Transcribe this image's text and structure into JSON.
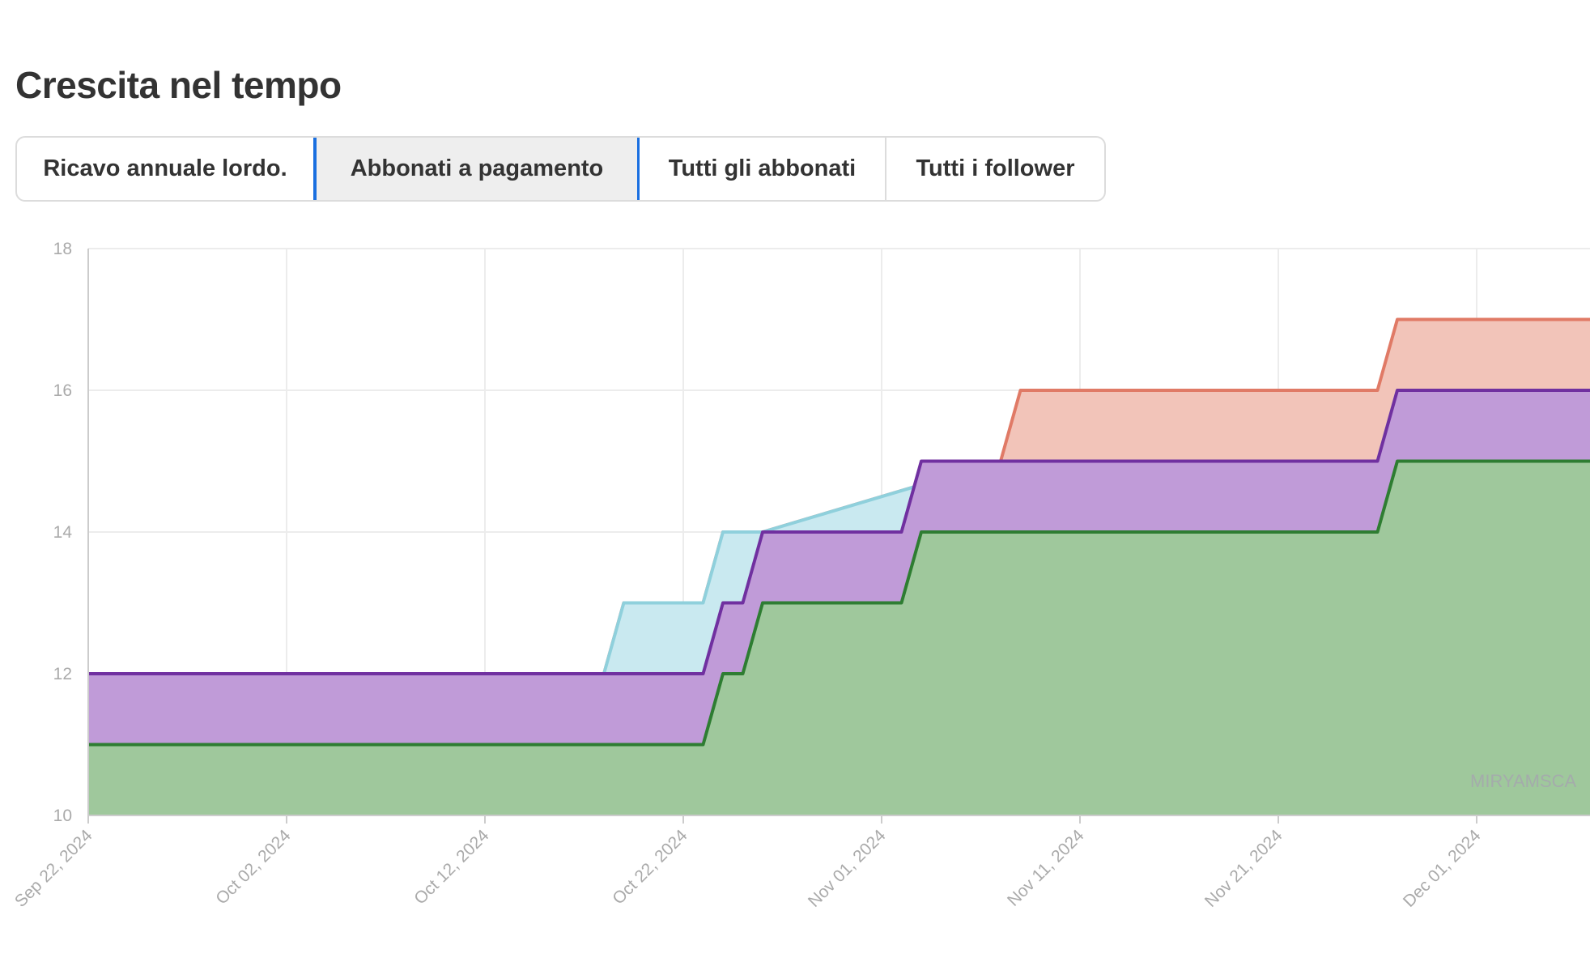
{
  "page": {
    "title": "Crescita nel tempo"
  },
  "tabs": [
    {
      "label": "Ricavo annuale lordo.",
      "active": false
    },
    {
      "label": "Abbonati a pagamento",
      "active": true
    },
    {
      "label": "Tutti gli abbonati",
      "active": false
    },
    {
      "label": "Tutti i follower",
      "active": false
    }
  ],
  "watermark": "MIRYAMSCA",
  "chart_data": {
    "type": "area",
    "title": "",
    "xlabel": "",
    "ylabel": "",
    "ylim": [
      10,
      18
    ],
    "yticks": [
      10,
      12,
      14,
      16,
      18
    ],
    "xlim": [
      "2024-09-22",
      "2024-12-09"
    ],
    "xticks": [
      "2024-09-22",
      "2024-10-02",
      "2024-10-12",
      "2024-10-22",
      "2024-11-01",
      "2024-11-11",
      "2024-11-21",
      "2024-12-01"
    ],
    "xtick_labels": [
      "Sep 22, 2024",
      "Oct 02, 2024",
      "Oct 12, 2024",
      "Oct 22, 2024",
      "Nov 01, 2024",
      "Nov 11, 2024",
      "Nov 21, 2024",
      "Dec 01, 2024"
    ],
    "grid": true,
    "legend": "none",
    "series": [
      {
        "color": "#e07a66",
        "fill": "#f2c4b9",
        "points": [
          [
            "2024-09-22",
            12
          ],
          [
            "2024-10-18",
            12
          ],
          [
            "2024-10-19",
            13
          ],
          [
            "2024-10-23",
            13
          ],
          [
            "2024-10-24",
            14
          ],
          [
            "2024-10-26",
            14
          ],
          [
            "2024-11-07",
            15
          ],
          [
            "2024-11-08",
            16
          ],
          [
            "2024-11-26",
            16
          ],
          [
            "2024-11-27",
            17
          ],
          [
            "2024-12-09",
            17
          ]
        ]
      },
      {
        "color": "#8fd0dc",
        "fill": "#c9e9f0",
        "points": [
          [
            "2024-09-22",
            12
          ],
          [
            "2024-10-18",
            12
          ],
          [
            "2024-10-19",
            13
          ],
          [
            "2024-10-23",
            13
          ],
          [
            "2024-10-24",
            14
          ],
          [
            "2024-10-26",
            14
          ],
          [
            "2024-11-07",
            15
          ],
          [
            "2024-11-26",
            15
          ],
          [
            "2024-11-27",
            16
          ],
          [
            "2024-12-09",
            16
          ]
        ]
      },
      {
        "color": "#7030a0",
        "fill": "#c09bd8",
        "points": [
          [
            "2024-09-22",
            12
          ],
          [
            "2024-10-23",
            12
          ],
          [
            "2024-10-24",
            13
          ],
          [
            "2024-10-25",
            13
          ],
          [
            "2024-10-26",
            14
          ],
          [
            "2024-11-02",
            14
          ],
          [
            "2024-11-03",
            15
          ],
          [
            "2024-11-26",
            15
          ],
          [
            "2024-11-27",
            16
          ],
          [
            "2024-12-09",
            16
          ]
        ]
      },
      {
        "color": "#2e7d32",
        "fill": "#9fc89c",
        "points": [
          [
            "2024-09-22",
            11
          ],
          [
            "2024-10-23",
            11
          ],
          [
            "2024-10-24",
            12
          ],
          [
            "2024-10-25",
            12
          ],
          [
            "2024-10-26",
            13
          ],
          [
            "2024-11-02",
            13
          ],
          [
            "2024-11-03",
            14
          ],
          [
            "2024-11-26",
            14
          ],
          [
            "2024-11-27",
            15
          ],
          [
            "2024-12-09",
            15
          ]
        ]
      }
    ]
  }
}
